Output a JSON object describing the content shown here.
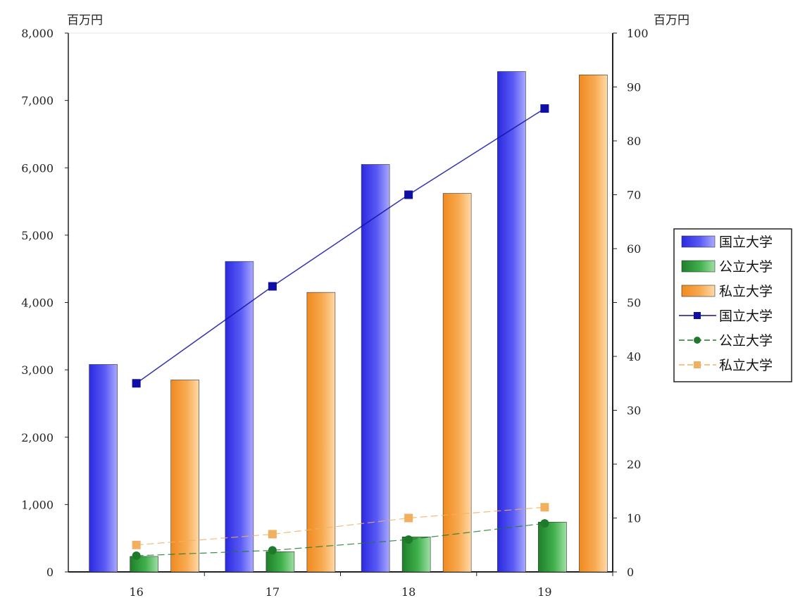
{
  "chart_data": {
    "type": "bar",
    "categories": [
      "16",
      "17",
      "18",
      "19"
    ],
    "left_axis": {
      "unit_label": "百万円",
      "ylim": [
        0,
        8000
      ],
      "ticks": [
        0,
        1000,
        2000,
        3000,
        4000,
        5000,
        6000,
        7000,
        8000
      ],
      "tick_labels": [
        "0",
        "1,000",
        "2,000",
        "3,000",
        "4,000",
        "5,000",
        "6,000",
        "7,000",
        "8,000"
      ]
    },
    "right_axis": {
      "unit_label": "百万円",
      "ylim": [
        0,
        100
      ],
      "ticks": [
        0,
        10,
        20,
        30,
        40,
        50,
        60,
        70,
        80,
        90,
        100
      ],
      "tick_labels": [
        "0",
        "10",
        "20",
        "30",
        "40",
        "50",
        "60",
        "70",
        "80",
        "90",
        "100"
      ]
    },
    "series": [
      {
        "name": "国立大学",
        "kind": "bar",
        "axis": "left",
        "color": "#3b3bef",
        "values": [
          3080,
          4610,
          6050,
          7430
        ]
      },
      {
        "name": "公立大学",
        "kind": "bar",
        "axis": "left",
        "color": "#2e9a3a",
        "values": [
          230,
          300,
          520,
          740
        ]
      },
      {
        "name": "私立大学",
        "kind": "bar",
        "axis": "left",
        "color": "#f7a23c",
        "values": [
          2850,
          4150,
          5620,
          7380
        ]
      },
      {
        "name": "国立大学",
        "kind": "line",
        "axis": "right",
        "color": "#0f0fa3",
        "marker": "square",
        "values": [
          35,
          53,
          70,
          86
        ]
      },
      {
        "name": "公立大学",
        "kind": "line",
        "axis": "right",
        "color": "#1e7a2a",
        "marker": "circle",
        "values": [
          3,
          4,
          6,
          9
        ]
      },
      {
        "name": "私立大学",
        "kind": "line",
        "axis": "right",
        "color": "#f0b060",
        "marker": "square",
        "values": [
          5,
          7,
          10,
          12
        ]
      }
    ],
    "legend": {
      "position": "right",
      "entries": [
        {
          "label": "国立大学",
          "style": "bar",
          "color": "#3b3bef"
        },
        {
          "label": "公立大学",
          "style": "bar",
          "color": "#2e9a3a"
        },
        {
          "label": "私立大学",
          "style": "bar",
          "color": "#f7a23c"
        },
        {
          "label": "国立大学",
          "style": "line-square",
          "color": "#0f0fa3"
        },
        {
          "label": "公立大学",
          "style": "line-circle",
          "color": "#1e7a2a"
        },
        {
          "label": "私立大学",
          "style": "line-square",
          "color": "#f0b060"
        }
      ]
    },
    "grid": false
  }
}
